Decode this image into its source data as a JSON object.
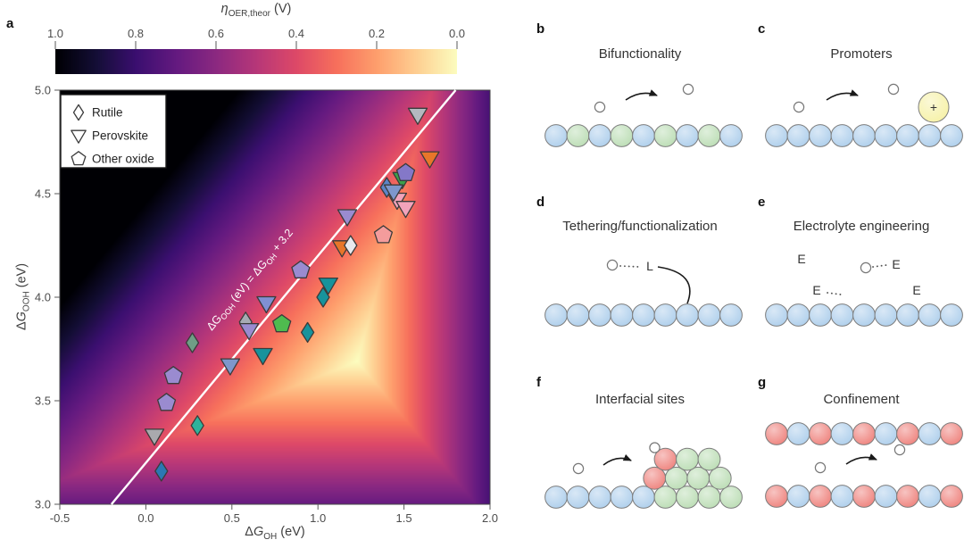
{
  "panels": {
    "a": {
      "label": "a"
    },
    "b": {
      "label": "b",
      "title": "Bifunctionality",
      "surface": [
        "blue",
        "green",
        "blue",
        "green",
        "blue",
        "green",
        "blue",
        "green",
        "blue"
      ],
      "has_arrow": true,
      "left_adsorbate": "OH-on-red",
      "right_adsorbate": "OOH-red-pair"
    },
    "c": {
      "label": "c",
      "title": "Promoters",
      "promoter_label": "+",
      "surface": [
        "blue",
        "blue",
        "blue",
        "blue",
        "blue",
        "blue",
        "blue",
        "blue",
        "blue"
      ],
      "has_arrow": true,
      "left_adsorbate": "OH-on-red",
      "right_adsorbate": "OOH-red-pair"
    },
    "d": {
      "label": "d",
      "title": "Tethering/functionalization",
      "ligand_label": "L",
      "surface": [
        "blue",
        "blue",
        "blue",
        "blue",
        "blue",
        "blue",
        "blue",
        "blue",
        "blue"
      ],
      "adsorbate": "OOH-red-stack"
    },
    "e": {
      "label": "e",
      "title": "Electrolyte engineering",
      "electrolyte_label": "E",
      "surface": [
        "blue",
        "blue",
        "blue",
        "blue",
        "blue",
        "blue",
        "blue",
        "blue",
        "blue"
      ],
      "adsorbate": "OOH-red-stack"
    },
    "f": {
      "label": "f",
      "title": "Interfacial sites",
      "surface": [
        "blue",
        "blue",
        "blue",
        "blue",
        "blue",
        "green",
        "green",
        "green",
        "green"
      ],
      "row2": [
        "red",
        "green",
        "green",
        "green"
      ],
      "row3": [
        "red-OH",
        "green",
        "green"
      ],
      "has_arrow": true,
      "left_adsorbate": "OH-on-red"
    },
    "g": {
      "label": "g",
      "title": "Confinement",
      "top_row": [
        "red",
        "blue",
        "red",
        "blue",
        "red",
        "blue",
        "red",
        "blue",
        "red"
      ],
      "bottom_row": [
        "red",
        "blue",
        "red",
        "blue",
        "red",
        "blue",
        "red",
        "blue",
        "red"
      ],
      "has_arrow": true,
      "left_adsorbate": "OH-on-red",
      "right_adsorbate": "OOH-red-pair"
    }
  },
  "atom_colors": {
    "blue": "#abcdeb",
    "green": "#b9dcb2",
    "red": "#ee7e78",
    "yellow": "#f6f1a4",
    "white": "#ffffff",
    "outline": "#7d7d7d"
  },
  "chart_data": {
    "type": "scatter-on-heatmap",
    "title": "",
    "heatmap": {
      "formula": "eta = max(dG_OH, (dG_OOH - dG_OH)/2, 4.92 - dG_OOH) - 1.23",
      "value_range": [
        0,
        1
      ],
      "colormap_stops": [
        "#000004",
        "#140e36",
        "#3b0f70",
        "#641a80",
        "#8c2981",
        "#b73779",
        "#de4968",
        "#f7705c",
        "#fe9f6d",
        "#fecf92",
        "#fcfdbf"
      ]
    },
    "colorbar": {
      "symbol": "η",
      "subscript": "OER,theor",
      "unit": "(V)",
      "ticks": [
        1.0,
        0.8,
        0.6,
        0.4,
        0.2,
        0.0
      ]
    },
    "xaxis": {
      "delta": "Δ",
      "symbol": "G",
      "sub": "OH",
      "unit": "(eV)",
      "range": [
        -0.5,
        2.0
      ],
      "ticks": [
        -0.5,
        0.0,
        0.5,
        1.0,
        1.5,
        2.0
      ]
    },
    "yaxis": {
      "delta": "Δ",
      "symbol": "G",
      "sub": "OOH",
      "unit": "(eV)",
      "range": [
        3.0,
        5.0
      ],
      "ticks": [
        3.0,
        3.5,
        4.0,
        4.5,
        5.0
      ]
    },
    "scaling_line": {
      "from": [
        -0.2,
        3.0
      ],
      "to": [
        1.8,
        5.0
      ],
      "color": "#ffffff",
      "label_parts": [
        [
          "ΔG",
          "OOH"
        ],
        [
          " (eV) = ΔG",
          "OH"
        ],
        [
          " + 3.2",
          ""
        ]
      ]
    },
    "legend": [
      {
        "marker": "diamond",
        "label": "Rutile"
      },
      {
        "marker": "triangle-down",
        "label": "Perovskite"
      },
      {
        "marker": "pentagon",
        "label": "Other oxide"
      }
    ],
    "marker_stroke": "#3b3b3b",
    "points": [
      {
        "series": "Perovskite",
        "marker": "triangle-down",
        "x": 1.49,
        "y": 4.57,
        "color": "#3da04a"
      },
      {
        "series": "Other oxide",
        "marker": "pentagon",
        "x": 1.51,
        "y": 4.6,
        "color": "#8478c8"
      },
      {
        "series": "Perovskite",
        "marker": "triangle-down",
        "x": 1.58,
        "y": 4.88,
        "color": "#b4b8bf"
      },
      {
        "series": "Perovskite",
        "marker": "triangle-down",
        "x": 1.65,
        "y": 4.67,
        "color": "#e8762a"
      },
      {
        "series": "Perovskite",
        "marker": "triangle-down",
        "x": 1.46,
        "y": 4.47,
        "color": "#f2a3bb"
      },
      {
        "series": "Rutile",
        "marker": "diamond",
        "x": 1.4,
        "y": 4.53,
        "color": "#5c85c7"
      },
      {
        "series": "Perovskite",
        "marker": "triangle-down",
        "x": 1.44,
        "y": 4.51,
        "color": "#7e97cc"
      },
      {
        "series": "Perovskite",
        "marker": "triangle-down",
        "x": 1.51,
        "y": 4.43,
        "color": "#f2a3bb"
      },
      {
        "series": "Other oxide",
        "marker": "pentagon",
        "x": 1.38,
        "y": 4.3,
        "color": "#f49c9c"
      },
      {
        "series": "Perovskite",
        "marker": "triangle-down",
        "x": 1.17,
        "y": 4.39,
        "color": "#9a8bd0"
      },
      {
        "series": "Perovskite",
        "marker": "triangle-down",
        "x": 1.14,
        "y": 4.24,
        "color": "#e8762a"
      },
      {
        "series": "Rutile",
        "marker": "diamond",
        "x": 1.19,
        "y": 4.25,
        "color": "#e9e9ee"
      },
      {
        "series": "Other oxide",
        "marker": "pentagon",
        "x": 0.9,
        "y": 4.13,
        "color": "#9a8bd0"
      },
      {
        "series": "Perovskite",
        "marker": "triangle-down",
        "x": 1.06,
        "y": 4.06,
        "color": "#17939c"
      },
      {
        "series": "Rutile",
        "marker": "diamond",
        "x": 1.03,
        "y": 4.0,
        "color": "#17939c"
      },
      {
        "series": "Rutile",
        "marker": "diamond",
        "x": 0.94,
        "y": 3.83,
        "color": "#17939c"
      },
      {
        "series": "Other oxide",
        "marker": "pentagon",
        "x": 0.79,
        "y": 3.87,
        "color": "#4fbb4f"
      },
      {
        "series": "Perovskite",
        "marker": "triangle-down",
        "x": 0.7,
        "y": 3.97,
        "color": "#8090d2"
      },
      {
        "series": "Rutile",
        "marker": "diamond",
        "x": 0.58,
        "y": 3.88,
        "color": "#a6abb3"
      },
      {
        "series": "Perovskite",
        "marker": "triangle-down",
        "x": 0.6,
        "y": 3.84,
        "color": "#9a8bd0"
      },
      {
        "series": "Rutile",
        "marker": "diamond",
        "x": 0.27,
        "y": 3.78,
        "color": "#6f9e86"
      },
      {
        "series": "Perovskite",
        "marker": "triangle-down",
        "x": 0.68,
        "y": 3.72,
        "color": "#17939c"
      },
      {
        "series": "Perovskite",
        "marker": "triangle-down",
        "x": 0.49,
        "y": 3.67,
        "color": "#7e97cc"
      },
      {
        "series": "Other oxide",
        "marker": "pentagon",
        "x": 0.16,
        "y": 3.62,
        "color": "#9a8bd0"
      },
      {
        "series": "Other oxide",
        "marker": "pentagon",
        "x": 0.12,
        "y": 3.49,
        "color": "#9a8bd0"
      },
      {
        "series": "Rutile",
        "marker": "diamond",
        "x": 0.3,
        "y": 3.38,
        "color": "#2fb39b"
      },
      {
        "series": "Perovskite",
        "marker": "triangle-down",
        "x": 0.05,
        "y": 3.33,
        "color": "#a9a9ad"
      },
      {
        "series": "Rutile",
        "marker": "diamond",
        "x": 0.09,
        "y": 3.16,
        "color": "#2b77b3"
      }
    ]
  }
}
